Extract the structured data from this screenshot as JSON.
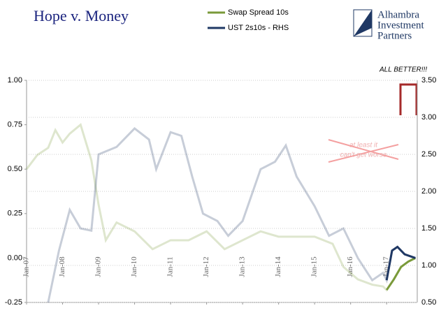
{
  "chart_data": {
    "type": "line",
    "title": "Hope v. Money",
    "logo": [
      "Alhambra",
      "Investment",
      "Partners"
    ],
    "annotations": [
      "ALL BETTER!!!",
      "at least it",
      "can't get worse"
    ],
    "xlim": [
      2007,
      2017.85
    ],
    "xticks": [
      {
        "value": 2007,
        "label": "Jan-07"
      },
      {
        "value": 2008,
        "label": "Jan-08"
      },
      {
        "value": 2009,
        "label": "Jan-09"
      },
      {
        "value": 2010,
        "label": "Jan-10"
      },
      {
        "value": 2011,
        "label": "Jan-11"
      },
      {
        "value": 2012,
        "label": "Jan-12"
      },
      {
        "value": 2013,
        "label": "Jan-13"
      },
      {
        "value": 2014,
        "label": "Jan-14"
      },
      {
        "value": 2015,
        "label": "Jan-15"
      },
      {
        "value": 2016,
        "label": "Jan-16"
      },
      {
        "value": 2017,
        "label": "Jan-17"
      }
    ],
    "ylim": [
      -0.25,
      1.0
    ],
    "yticks": [
      {
        "value": -0.25,
        "label": "-0.25"
      },
      {
        "value": 0,
        "label": "0.00"
      },
      {
        "value": 0.25,
        "label": "0.25"
      },
      {
        "value": 0.5,
        "label": "0.50"
      },
      {
        "value": 0.75,
        "label": "0.75"
      },
      {
        "value": 1,
        "label": "1.00"
      }
    ],
    "y2lim": [
      0.5,
      3.5
    ],
    "y2ticks": [
      {
        "value": 0.5,
        "label": "0.50"
      },
      {
        "value": 1,
        "label": "1.00"
      },
      {
        "value": 1.5,
        "label": "1.50"
      },
      {
        "value": 2,
        "label": "2.00"
      },
      {
        "value": 2.5,
        "label": "2.50"
      },
      {
        "value": 3,
        "label": "3.00"
      },
      {
        "value": 3.5,
        "label": "3.50"
      }
    ],
    "grid": true,
    "series": [
      {
        "name": "Swap Spread 10s",
        "color": "#7a9a3a",
        "x": [
          2007,
          2007.3,
          2007.6,
          2007.8,
          2008.0,
          2008.2,
          2008.5,
          2008.8,
          2009.0,
          2009.2,
          2009.5,
          2010.0,
          2010.5,
          2011.0,
          2011.5,
          2012.0,
          2012.5,
          2013.0,
          2013.5,
          2014.0,
          2014.5,
          2015.0,
          2015.5,
          2015.8,
          2016.2,
          2016.6,
          2016.9,
          2017.0,
          2017.2,
          2017.4,
          2017.6,
          2017.8
        ],
        "values": [
          0.5,
          0.58,
          0.62,
          0.72,
          0.65,
          0.7,
          0.75,
          0.55,
          0.3,
          0.1,
          0.2,
          0.15,
          0.05,
          0.1,
          0.1,
          0.15,
          0.05,
          0.1,
          0.15,
          0.12,
          0.12,
          0.12,
          0.08,
          -0.05,
          -0.12,
          -0.15,
          -0.16,
          -0.18,
          -0.12,
          -0.05,
          -0.02,
          0.0
        ]
      },
      {
        "name": "UST 2s10s - RHS",
        "color": "#1f3864",
        "axis": "y2",
        "x": [
          2007.6,
          2007.9,
          2008.2,
          2008.5,
          2008.8,
          2009.0,
          2009.5,
          2010.0,
          2010.4,
          2010.6,
          2011.0,
          2011.3,
          2011.6,
          2011.9,
          2012.3,
          2012.6,
          2013.0,
          2013.5,
          2013.9,
          2014.2,
          2014.5,
          2015.0,
          2015.4,
          2015.8,
          2016.2,
          2016.6,
          2016.9,
          2017.0,
          2017.15,
          2017.3,
          2017.5,
          2017.8
        ],
        "values": [
          0.5,
          1.2,
          1.75,
          1.5,
          1.47,
          2.5,
          2.6,
          2.85,
          2.7,
          2.3,
          2.8,
          2.75,
          2.2,
          1.7,
          1.6,
          1.4,
          1.6,
          2.3,
          2.4,
          2.62,
          2.2,
          1.8,
          1.4,
          1.5,
          1.1,
          0.8,
          0.9,
          0.8,
          1.2,
          1.25,
          1.15,
          1.1
        ]
      }
    ]
  }
}
